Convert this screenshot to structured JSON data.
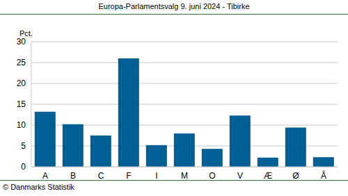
{
  "chart_data": {
    "type": "bar",
    "title": "Europa-Parlamentsvalg 9. juni 2024 - Tibirke",
    "ylabel": "Pct.",
    "source": "© Danmarks Statistik",
    "categories": [
      "A",
      "B",
      "C",
      "F",
      "I",
      "M",
      "O",
      "V",
      "Æ",
      "Ø",
      "Å"
    ],
    "values": [
      13.2,
      10.2,
      7.5,
      26.0,
      5.2,
      8.0,
      4.3,
      12.3,
      2.2,
      9.4,
      2.3
    ],
    "color": "#005f93",
    "ylim": [
      0,
      30
    ],
    "yticks": [
      0,
      5,
      10,
      15,
      20,
      25,
      30
    ],
    "grid": true
  }
}
